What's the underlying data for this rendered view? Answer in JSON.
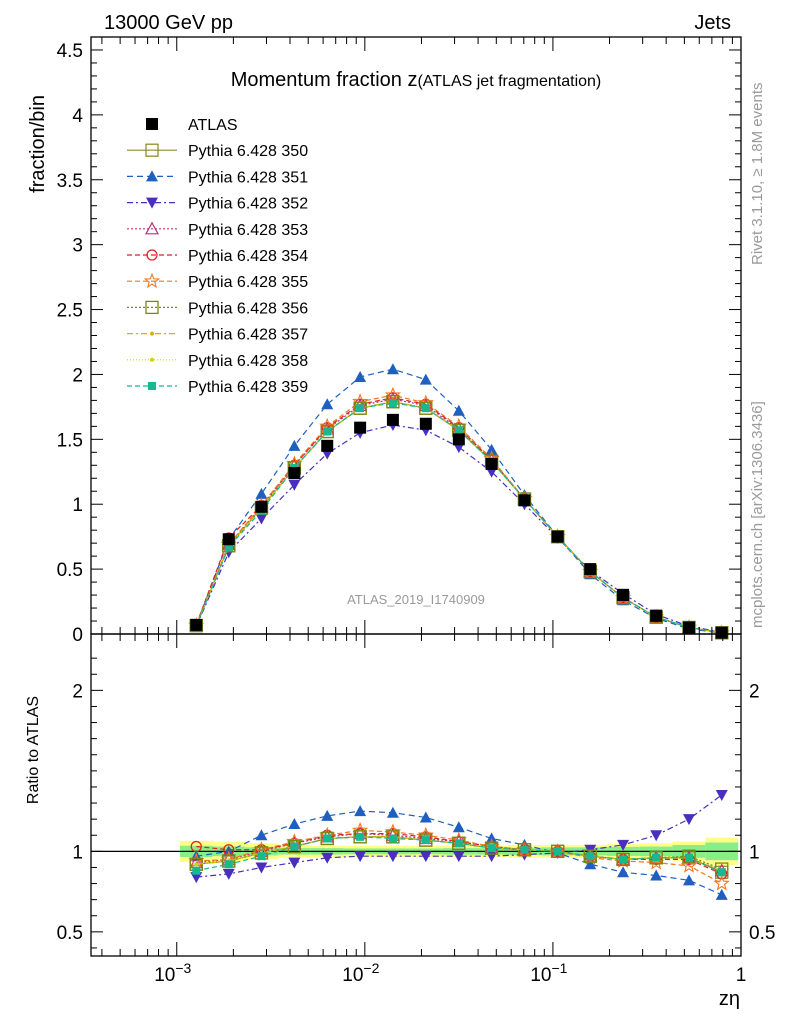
{
  "header": {
    "left": "13000 GeV pp",
    "right": "Jets"
  },
  "title": {
    "main": "Momentum fraction z",
    "sub": "(ATLAS jet fragmentation)"
  },
  "side_text": {
    "top": "Rivet 3.1.10, ≥ 1.8M events",
    "bottom": "mcplots.cern.ch [arXiv:1306.3436]"
  },
  "watermark": "ATLAS_2019_I1740909",
  "chart_data": [
    {
      "type": "scatter",
      "title": "Momentum fraction z(ATLAS jet fragmentation)",
      "xlabel": "zη",
      "ylabel": "fraction/bin",
      "xscale": "log",
      "xlim": [
        0.00035,
        1.0
      ],
      "ylim": [
        0,
        4.6
      ],
      "grid": false,
      "legend": "top-left",
      "x_ticks": [
        "10^-3",
        "10^-2",
        "10^-1",
        "1"
      ],
      "y_ticks": [
        "0",
        "0.5",
        "1",
        "1.5",
        "2",
        "2.5",
        "3",
        "3.5",
        "4",
        "4.5"
      ],
      "x": [
        0.00127,
        0.00189,
        0.00282,
        0.00422,
        0.00631,
        0.00944,
        0.0141,
        0.0211,
        0.0316,
        0.0472,
        0.0706,
        0.106,
        0.158,
        0.236,
        0.354,
        0.529,
        0.79
      ],
      "data": {
        "name": "ATLAS",
        "values": [
          0.07,
          0.73,
          0.98,
          1.24,
          1.45,
          1.59,
          1.65,
          1.62,
          1.5,
          1.31,
          1.03,
          0.75,
          0.5,
          0.3,
          0.14,
          0.05,
          0.01
        ]
      },
      "series": [
        {
          "name": "Pythia 6.428 350",
          "color": "#8e8e2e",
          "dash": "",
          "marker": "open-square",
          "values": [
            0.065,
            0.68,
            0.97,
            1.28,
            1.56,
            1.74,
            1.79,
            1.74,
            1.57,
            1.33,
            1.04,
            0.75,
            0.48,
            0.28,
            0.13,
            0.05,
            0.009
          ]
        },
        {
          "name": "Pythia 6.428 351",
          "color": "#1f5fbf",
          "dash": "6,4",
          "marker": "filled-triangle-up",
          "values": [
            0.068,
            0.73,
            1.08,
            1.45,
            1.77,
            1.98,
            2.04,
            1.96,
            1.72,
            1.42,
            1.07,
            0.75,
            0.46,
            0.26,
            0.12,
            0.04,
            0.007
          ]
        },
        {
          "name": "Pythia 6.428 352",
          "color": "#4a2fbf",
          "dash": "6,3,2,3",
          "marker": "filled-triangle-down",
          "values": [
            0.059,
            0.63,
            0.89,
            1.15,
            1.39,
            1.55,
            1.61,
            1.57,
            1.44,
            1.25,
            1.0,
            0.74,
            0.49,
            0.31,
            0.15,
            0.06,
            0.013
          ]
        },
        {
          "name": "Pythia 6.428 353",
          "color": "#c0307a",
          "dash": "2,2",
          "marker": "open-triangle-up",
          "values": [
            0.067,
            0.69,
            0.98,
            1.3,
            1.58,
            1.76,
            1.81,
            1.76,
            1.58,
            1.34,
            1.04,
            0.75,
            0.48,
            0.28,
            0.13,
            0.05,
            0.009
          ]
        },
        {
          "name": "Pythia 6.428 354",
          "color": "#dd2020",
          "dash": "5,3",
          "marker": "open-circle",
          "values": [
            0.072,
            0.74,
            0.99,
            1.3,
            1.59,
            1.77,
            1.82,
            1.77,
            1.59,
            1.34,
            1.04,
            0.75,
            0.48,
            0.28,
            0.13,
            0.05,
            0.009
          ]
        },
        {
          "name": "Pythia 6.428 355",
          "color": "#f07820",
          "dash": "5,3",
          "marker": "open-star",
          "values": [
            0.066,
            0.69,
            0.99,
            1.31,
            1.6,
            1.79,
            1.84,
            1.78,
            1.6,
            1.35,
            1.04,
            0.75,
            0.48,
            0.28,
            0.13,
            0.05,
            0.008
          ]
        },
        {
          "name": "Pythia 6.428 356",
          "color": "#7a8a10",
          "dash": "2,2",
          "marker": "open-square",
          "values": [
            0.065,
            0.68,
            0.97,
            1.28,
            1.56,
            1.74,
            1.79,
            1.74,
            1.57,
            1.33,
            1.04,
            0.75,
            0.48,
            0.28,
            0.13,
            0.05,
            0.009
          ]
        },
        {
          "name": "Pythia 6.428 357",
          "color": "#d8b000",
          "dash": "6,3,2,3",
          "marker": "small-dot",
          "values": [
            0.065,
            0.68,
            0.97,
            1.28,
            1.56,
            1.74,
            1.79,
            1.74,
            1.57,
            1.33,
            1.04,
            0.75,
            0.48,
            0.28,
            0.13,
            0.05,
            0.009
          ]
        },
        {
          "name": "Pythia 6.428 358",
          "color": "#c8d800",
          "dash": "1,2",
          "marker": "small-dot",
          "values": [
            0.065,
            0.68,
            0.97,
            1.28,
            1.56,
            1.74,
            1.79,
            1.74,
            1.57,
            1.33,
            1.04,
            0.75,
            0.48,
            0.28,
            0.13,
            0.05,
            0.009
          ]
        },
        {
          "name": "Pythia 6.428 359",
          "color": "#18b890",
          "dash": "5,3",
          "marker": "filled-square-small",
          "values": [
            0.062,
            0.67,
            0.95,
            1.28,
            1.56,
            1.74,
            1.78,
            1.74,
            1.57,
            1.33,
            1.04,
            0.75,
            0.48,
            0.28,
            0.13,
            0.05,
            0.009
          ]
        }
      ]
    },
    {
      "type": "scatter",
      "title": "",
      "xlabel": "zη",
      "ylabel": "Ratio to ATLAS",
      "xscale": "log",
      "xlim": [
        0.00035,
        1.0
      ],
      "ylim": [
        0.35,
        2.35
      ],
      "reference_line": 1,
      "y_ticks": [
        "0.5",
        "1",
        "2"
      ],
      "uncertainty_band": {
        "inner_half_width": [
          0.035,
          0.03,
          0.025,
          0.02,
          0.02,
          0.018,
          0.018,
          0.018,
          0.02,
          0.02,
          0.022,
          0.025,
          0.025,
          0.028,
          0.03,
          0.04,
          0.055
        ],
        "outer_half_width": [
          0.065,
          0.06,
          0.05,
          0.04,
          0.035,
          0.035,
          0.035,
          0.035,
          0.035,
          0.035,
          0.04,
          0.04,
          0.04,
          0.045,
          0.05,
          0.06,
          0.085
        ],
        "inner_color": "#88ee88",
        "outer_color": "#ffff88"
      },
      "series": [
        {
          "name": "Pythia 6.428 350",
          "values": [
            0.92,
            0.94,
            0.99,
            1.03,
            1.08,
            1.09,
            1.09,
            1.07,
            1.05,
            1.02,
            1.01,
            1.0,
            0.97,
            0.95,
            0.96,
            0.96,
            0.87
          ]
        },
        {
          "name": "Pythia 6.428 351",
          "values": [
            0.97,
            1.0,
            1.1,
            1.17,
            1.22,
            1.25,
            1.24,
            1.21,
            1.15,
            1.08,
            1.04,
            0.99,
            0.92,
            0.87,
            0.85,
            0.82,
            0.73
          ]
        },
        {
          "name": "Pythia 6.428 352",
          "values": [
            0.84,
            0.86,
            0.9,
            0.93,
            0.96,
            0.97,
            0.97,
            0.97,
            0.97,
            0.97,
            0.98,
            0.99,
            1.01,
            1.04,
            1.1,
            1.2,
            1.35
          ]
        },
        {
          "name": "Pythia 6.428 353",
          "values": [
            0.93,
            0.95,
            1.0,
            1.05,
            1.09,
            1.11,
            1.1,
            1.08,
            1.06,
            1.03,
            1.01,
            1.0,
            0.97,
            0.95,
            0.96,
            0.96,
            0.88
          ]
        },
        {
          "name": "Pythia 6.428 354",
          "values": [
            1.03,
            1.01,
            1.01,
            1.05,
            1.1,
            1.11,
            1.11,
            1.09,
            1.06,
            1.03,
            1.01,
            1.0,
            0.97,
            0.95,
            0.95,
            0.95,
            0.86
          ]
        },
        {
          "name": "Pythia 6.428 355",
          "values": [
            0.94,
            0.95,
            1.01,
            1.06,
            1.1,
            1.13,
            1.12,
            1.1,
            1.07,
            1.03,
            1.01,
            1.0,
            0.96,
            0.94,
            0.93,
            0.91,
            0.8
          ]
        },
        {
          "name": "Pythia 6.428 356",
          "values": [
            0.92,
            0.94,
            0.99,
            1.03,
            1.08,
            1.09,
            1.09,
            1.07,
            1.05,
            1.02,
            1.01,
            1.0,
            0.97,
            0.95,
            0.96,
            0.97,
            0.89
          ]
        },
        {
          "name": "Pythia 6.428 357",
          "values": [
            0.92,
            0.94,
            0.99,
            1.03,
            1.08,
            1.09,
            1.09,
            1.07,
            1.05,
            1.02,
            1.01,
            1.0,
            0.97,
            0.95,
            0.96,
            0.96,
            0.88
          ]
        },
        {
          "name": "Pythia 6.428 358",
          "values": [
            0.92,
            0.94,
            0.99,
            1.03,
            1.08,
            1.09,
            1.09,
            1.07,
            1.05,
            1.02,
            1.01,
            1.0,
            0.97,
            0.95,
            0.96,
            0.96,
            0.88
          ]
        },
        {
          "name": "Pythia 6.428 359",
          "values": [
            0.88,
            0.92,
            0.97,
            1.03,
            1.08,
            1.09,
            1.08,
            1.07,
            1.05,
            1.02,
            1.01,
            1.0,
            0.97,
            0.95,
            0.96,
            0.96,
            0.87
          ]
        }
      ]
    }
  ]
}
